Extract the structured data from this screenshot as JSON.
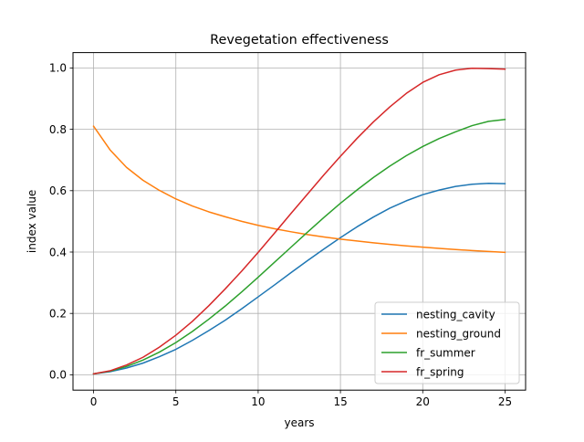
{
  "chart_data": {
    "type": "line",
    "title": "Revegetation effectiveness",
    "xlabel": "years",
    "ylabel": "index value",
    "xlim": [
      -1.25,
      26.25
    ],
    "ylim": [
      -0.05,
      1.05
    ],
    "xticks": [
      0,
      5,
      10,
      15,
      20,
      25
    ],
    "xtick_labels": [
      "0",
      "5",
      "10",
      "15",
      "20",
      "25"
    ],
    "yticks": [
      0.0,
      0.2,
      0.4,
      0.6,
      0.8,
      1.0
    ],
    "ytick_labels": [
      "0.0",
      "0.2",
      "0.4",
      "0.6",
      "0.8",
      "1.0"
    ],
    "grid": true,
    "legend_position": "lower-right",
    "x": [
      0,
      1,
      2,
      3,
      4,
      5,
      6,
      7,
      8,
      9,
      10,
      11,
      12,
      13,
      14,
      15,
      16,
      17,
      18,
      19,
      20,
      21,
      22,
      23,
      24,
      25
    ],
    "series": [
      {
        "name": "nesting_cavity",
        "color": "#1f77b4",
        "values": [
          0.003,
          0.01,
          0.022,
          0.038,
          0.059,
          0.083,
          0.112,
          0.144,
          0.178,
          0.215,
          0.254,
          0.293,
          0.333,
          0.372,
          0.41,
          0.447,
          0.482,
          0.514,
          0.543,
          0.567,
          0.587,
          0.602,
          0.614,
          0.621,
          0.624,
          0.623
        ]
      },
      {
        "name": "nesting_ground",
        "color": "#ff7f0e",
        "values": [
          0.81,
          0.733,
          0.676,
          0.634,
          0.601,
          0.573,
          0.55,
          0.531,
          0.515,
          0.5,
          0.487,
          0.476,
          0.466,
          0.457,
          0.449,
          0.442,
          0.436,
          0.43,
          0.425,
          0.42,
          0.416,
          0.412,
          0.408,
          0.405,
          0.402,
          0.399
        ]
      },
      {
        "name": "fr_summer",
        "color": "#2ca02c",
        "values": [
          0.003,
          0.012,
          0.027,
          0.048,
          0.074,
          0.105,
          0.141,
          0.181,
          0.224,
          0.27,
          0.318,
          0.367,
          0.416,
          0.465,
          0.513,
          0.559,
          0.602,
          0.643,
          0.68,
          0.714,
          0.744,
          0.77,
          0.792,
          0.812,
          0.826,
          0.832
        ]
      },
      {
        "name": "fr_spring",
        "color": "#d62728",
        "values": [
          0.003,
          0.013,
          0.032,
          0.057,
          0.09,
          0.129,
          0.174,
          0.225,
          0.28,
          0.338,
          0.399,
          0.462,
          0.526,
          0.589,
          0.652,
          0.712,
          0.77,
          0.824,
          0.873,
          0.917,
          0.953,
          0.978,
          0.993,
          0.999,
          0.998,
          0.996
        ]
      }
    ]
  }
}
